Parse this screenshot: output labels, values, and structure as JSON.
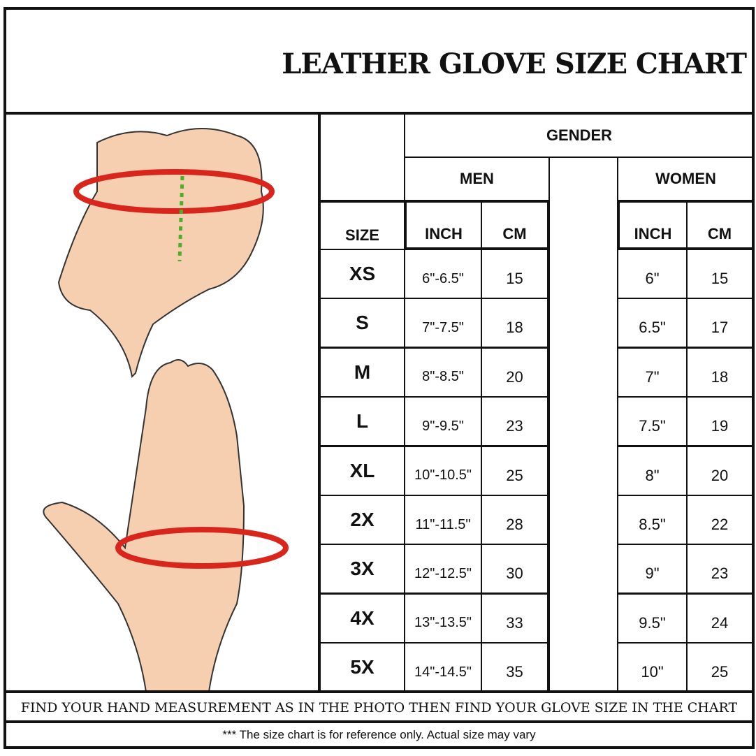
{
  "title": "LEATHER GLOVE SIZE CHART",
  "table": {
    "gender_label": "GENDER",
    "men_label": "MEN",
    "women_label": "WOMEN",
    "size_label": "SIZE",
    "inch_label": "INCH",
    "cm_label": "CM",
    "rows": [
      {
        "size": "XS",
        "men_inch": "6\"-6.5\"",
        "men_cm": "15",
        "women_inch": "6\"",
        "women_cm": "15"
      },
      {
        "size": "S",
        "men_inch": "7\"-7.5\"",
        "men_cm": "18",
        "women_inch": "6.5\"",
        "women_cm": "17"
      },
      {
        "size": "M",
        "men_inch": "8\"-8.5\"",
        "men_cm": "20",
        "women_inch": "7\"",
        "women_cm": "18"
      },
      {
        "size": "L",
        "men_inch": "9\"-9.5\"",
        "men_cm": "23",
        "women_inch": "7.5\"",
        "women_cm": "19"
      },
      {
        "size": "XL",
        "men_inch": "10\"-10.5\"",
        "men_cm": "25",
        "women_inch": "8\"",
        "women_cm": "20"
      },
      {
        "size": "2X",
        "men_inch": "11\"-11.5\"",
        "men_cm": "28",
        "women_inch": "8.5\"",
        "women_cm": "22"
      },
      {
        "size": "3X",
        "men_inch": "12\"-12.5\"",
        "men_cm": "30",
        "women_inch": "9\"",
        "women_cm": "23"
      },
      {
        "size": "4X",
        "men_inch": "13\"-13.5\"",
        "men_cm": "33",
        "women_inch": "9.5\"",
        "women_cm": "24"
      },
      {
        "size": "5X",
        "men_inch": "14\"-14.5\"",
        "men_cm": "35",
        "women_inch": "10\"",
        "women_cm": "25"
      }
    ]
  },
  "instruction": "FIND YOUR HAND MEASUREMENT AS IN THE PHOTO THEN FIND YOUR GLOVE SIZE IN THE CHART",
  "disclaimer": "*** The size chart is for reference only.  Actual size may vary",
  "colors": {
    "skin": "#f6cfb0",
    "measure_red": "#d9261c",
    "guide_green": "#4caf2a"
  }
}
